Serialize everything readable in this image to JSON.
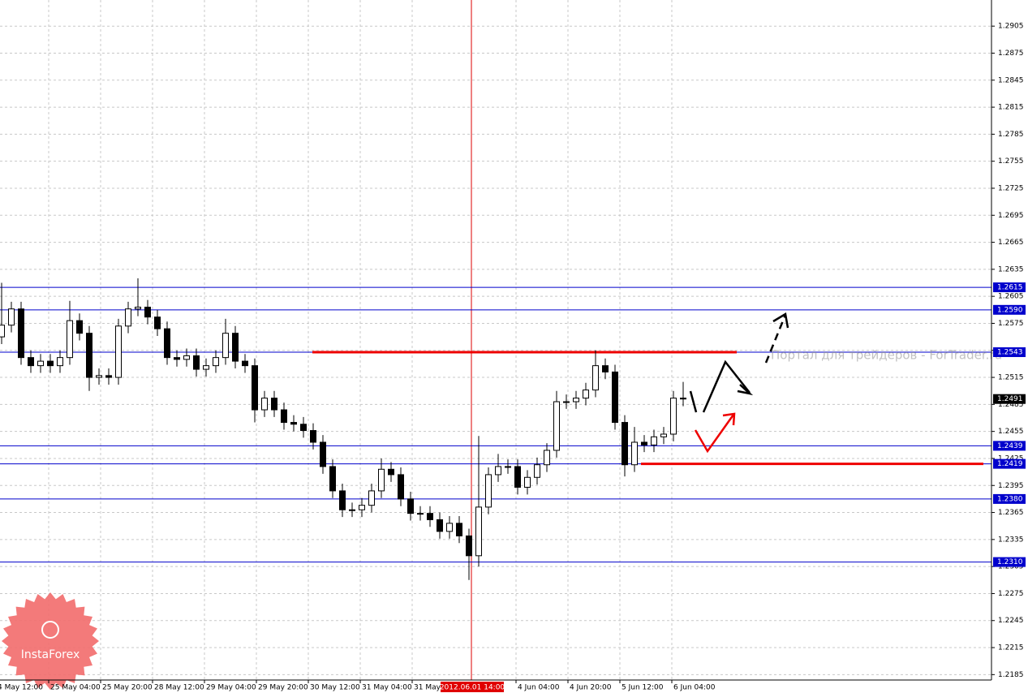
{
  "chart_data": {
    "type": "candlestick",
    "x": [
      0,
      3,
      6,
      9,
      12,
      15,
      18,
      21,
      24,
      27,
      30,
      33,
      36,
      39,
      42,
      45,
      48,
      51,
      54,
      57,
      60,
      63,
      66,
      69,
      72,
      75,
      78,
      81,
      84,
      87,
      90,
      93,
      96,
      99,
      102,
      105,
      108,
      111,
      114,
      117,
      120,
      123,
      126,
      129,
      132,
      135,
      138,
      141,
      144,
      147,
      150,
      153,
      156,
      159,
      162,
      165,
      168,
      171,
      174,
      177,
      180,
      183,
      186,
      189,
      192,
      195,
      198,
      201,
      204,
      207,
      210
    ],
    "open": [
      1.256,
      1.2573,
      1.2591,
      1.2537,
      1.2528,
      1.2533,
      1.2528,
      1.2537,
      1.2578,
      1.2564,
      1.2515,
      1.2517,
      1.2515,
      1.2572,
      1.2591,
      1.2593,
      1.2582,
      1.2569,
      1.2537,
      1.2535,
      1.2539,
      1.2524,
      1.2528,
      1.2537,
      1.2564,
      1.2533,
      1.2528,
      1.2479,
      1.2492,
      1.2479,
      1.2465,
      1.2463,
      1.2456,
      1.2443,
      1.2416,
      1.2389,
      1.2368,
      1.2368,
      1.2373,
      1.2389,
      1.2413,
      1.2407,
      1.238,
      1.2364,
      1.2364,
      1.2357,
      1.2344,
      1.2353,
      1.2339,
      1.2317,
      1.2371,
      1.2407,
      1.2416,
      1.2416,
      1.2393,
      1.2404,
      1.2418,
      1.2434,
      1.2488,
      1.2488,
      1.2492,
      1.2501,
      1.2528,
      1.2521,
      1.2465,
      1.2418,
      1.2443,
      1.244,
      1.2449,
      1.2452,
      1.2492
    ],
    "high": [
      1.262,
      1.2599,
      1.2599,
      1.2545,
      1.2541,
      1.2541,
      1.2545,
      1.26,
      1.2586,
      1.2572,
      1.2525,
      1.2525,
      1.258,
      1.2599,
      1.2625,
      1.2601,
      1.259,
      1.2577,
      1.2545,
      1.2547,
      1.2547,
      1.2536,
      1.2545,
      1.258,
      1.2572,
      1.2541,
      1.2536,
      1.25,
      1.25,
      1.2487,
      1.2473,
      1.2471,
      1.2464,
      1.2451,
      1.2424,
      1.2397,
      1.2376,
      1.2381,
      1.2397,
      1.2425,
      1.2421,
      1.2415,
      1.2388,
      1.2372,
      1.2372,
      1.2365,
      1.2361,
      1.2361,
      1.2347,
      1.245,
      1.2415,
      1.243,
      1.2424,
      1.2424,
      1.2412,
      1.2426,
      1.2442,
      1.25,
      1.2496,
      1.25,
      1.2509,
      1.2545,
      1.2536,
      1.2529,
      1.2473,
      1.246,
      1.2451,
      1.2457,
      1.246,
      1.25,
      1.251
    ],
    "low": [
      1.2552,
      1.2565,
      1.2529,
      1.252,
      1.252,
      1.252,
      1.252,
      1.2529,
      1.2556,
      1.25,
      1.2507,
      1.2507,
      1.2507,
      1.2564,
      1.2583,
      1.2574,
      1.2561,
      1.2529,
      1.2527,
      1.2527,
      1.2516,
      1.2516,
      1.252,
      1.2529,
      1.2525,
      1.252,
      1.2465,
      1.2471,
      1.2471,
      1.2457,
      1.2455,
      1.2448,
      1.2435,
      1.2408,
      1.2381,
      1.236,
      1.236,
      1.236,
      1.2365,
      1.2381,
      1.2399,
      1.2372,
      1.2356,
      1.2356,
      1.2349,
      1.2336,
      1.2336,
      1.2331,
      1.229,
      1.2305,
      1.2363,
      1.2399,
      1.2408,
      1.2385,
      1.2385,
      1.2396,
      1.241,
      1.2426,
      1.248,
      1.248,
      1.2484,
      1.2493,
      1.2513,
      1.2457,
      1.2405,
      1.241,
      1.2432,
      1.2432,
      1.2441,
      1.2444,
      1.2483
    ],
    "close": [
      1.2573,
      1.2591,
      1.2537,
      1.2528,
      1.2533,
      1.2528,
      1.2537,
      1.2578,
      1.2564,
      1.2515,
      1.2517,
      1.2515,
      1.2572,
      1.2591,
      1.2593,
      1.2582,
      1.2569,
      1.2537,
      1.2535,
      1.2539,
      1.2524,
      1.2528,
      1.2537,
      1.2564,
      1.2533,
      1.2528,
      1.2479,
      1.2492,
      1.2479,
      1.2465,
      1.2463,
      1.2456,
      1.2443,
      1.2416,
      1.2389,
      1.2368,
      1.2368,
      1.2373,
      1.2389,
      1.2413,
      1.2407,
      1.238,
      1.2364,
      1.2364,
      1.2357,
      1.2344,
      1.2353,
      1.2339,
      1.2317,
      1.2371,
      1.2407,
      1.2416,
      1.2416,
      1.2393,
      1.2404,
      1.2418,
      1.2434,
      1.2488,
      1.2488,
      1.2492,
      1.2501,
      1.2528,
      1.2521,
      1.2465,
      1.2418,
      1.2443,
      1.244,
      1.2449,
      1.2452,
      1.2492,
      1.2491
    ],
    "xlim": [
      -0.5,
      305
    ],
    "ylim": [
      1.2179,
      1.2934
    ],
    "yticks": [
      1.2185,
      1.2215,
      1.2245,
      1.2275,
      1.2305,
      1.2335,
      1.2365,
      1.2395,
      1.2425,
      1.2455,
      1.2485,
      1.2515,
      1.2545,
      1.2575,
      1.2605,
      1.2635,
      1.2665,
      1.2695,
      1.2725,
      1.2755,
      1.2785,
      1.2815,
      1.2845,
      1.2875,
      1.2905
    ],
    "xticks": [
      {
        "value": -1.75,
        "label": "4 May 12:00"
      },
      {
        "value": 14.5,
        "label": "25 May 04:00"
      },
      {
        "value": 30.5,
        "label": "25 May 20:00"
      },
      {
        "value": 46.5,
        "label": "28 May 12:00"
      },
      {
        "value": 62.5,
        "label": "29 May 04:00"
      },
      {
        "value": 78.5,
        "label": "29 May 20:00"
      },
      {
        "value": 94.5,
        "label": "30 May 12:00"
      },
      {
        "value": 110.5,
        "label": "31 May 04:00"
      },
      {
        "value": 126.5,
        "label": "31 May"
      },
      {
        "value": 158.5,
        "label": "4 Jun 04:00"
      },
      {
        "value": 174.5,
        "label": "4 Jun 20:00"
      },
      {
        "value": 190.5,
        "label": "5 Jun 12:00"
      },
      {
        "value": 206.5,
        "label": "6 Jun 04:00"
      }
    ],
    "cursor": {
      "value": 144.75,
      "label": "2012.06.01 14:00"
    },
    "levels": [
      1.2615,
      {
        "value": 1.259,
        "label": "1.2590"
      },
      1.2543,
      1.2439,
      1.2419,
      {
        "value": 1.238,
        "label": "1.2380"
      },
      {
        "value": 1.231,
        "label": "1.2310"
      }
    ],
    "current_price": 1.2491,
    "grid": true,
    "watermark": "Портал для трейдеров - ForTrader.ru",
    "logo": "InstaForex"
  }
}
